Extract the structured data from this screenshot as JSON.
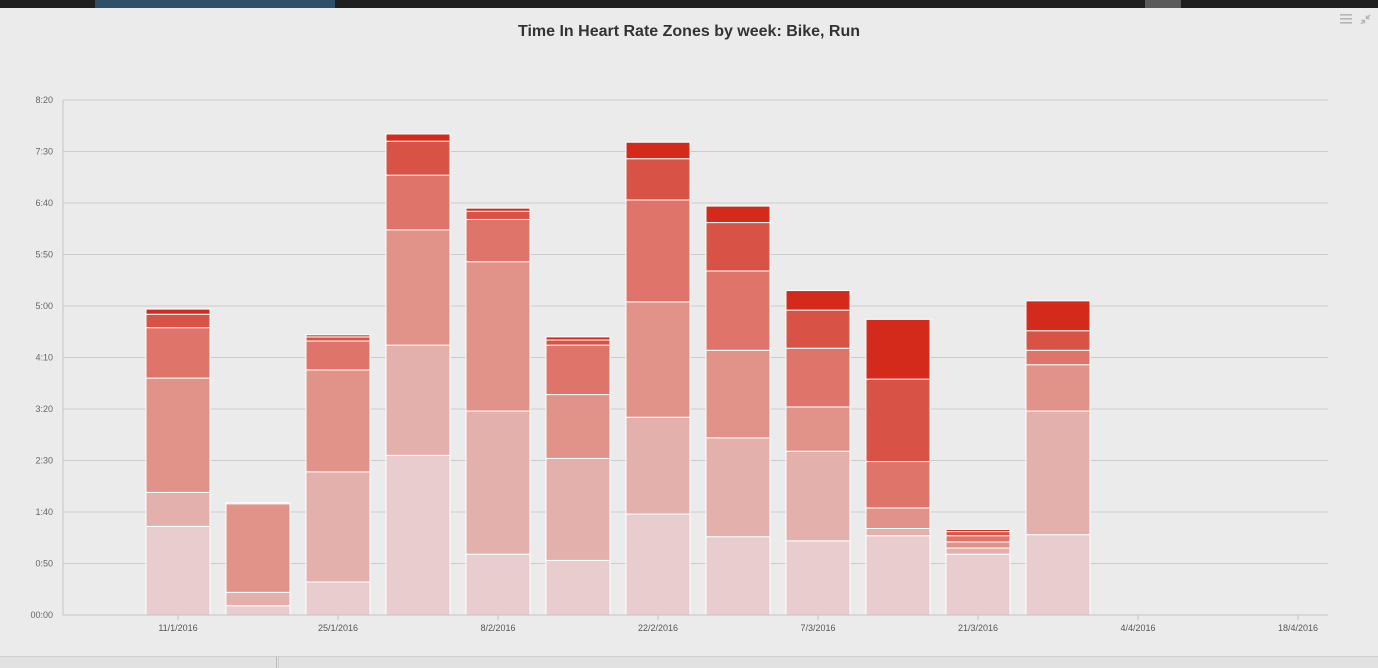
{
  "chart_data": {
    "type": "bar",
    "stacked": true,
    "title": "Time In Heart Rate Zones by week: Bike, Run",
    "y_unit": "minutes",
    "ylim": [
      0,
      500
    ],
    "yticks": [
      {
        "value": 0,
        "label": "00:00"
      },
      {
        "value": 50,
        "label": "0:50"
      },
      {
        "value": 100,
        "label": "1:40"
      },
      {
        "value": 150,
        "label": "2:30"
      },
      {
        "value": 200,
        "label": "3:20"
      },
      {
        "value": 250,
        "label": "4:10"
      },
      {
        "value": 300,
        "label": "5:00"
      },
      {
        "value": 350,
        "label": "5:50"
      },
      {
        "value": 400,
        "label": "6:40"
      },
      {
        "value": 450,
        "label": "7:30"
      },
      {
        "value": 500,
        "label": "8:20"
      }
    ],
    "x_ticks": [
      "11/1/2016",
      "25/1/2016",
      "8/2/2016",
      "22/2/2016",
      "7/3/2016",
      "21/3/2016",
      "4/4/2016",
      "18/4/2016"
    ],
    "grid": true,
    "legend": "none",
    "zone_colors": [
      "#e9cccd",
      "#e4b0ab",
      "#e29389",
      "#df746a",
      "#d85346",
      "#d42a1c"
    ],
    "weeks": [
      {
        "week": "11/1/2016",
        "zones": [
          86,
          33,
          111,
          49,
          13,
          5
        ]
      },
      {
        "week": "18/1/2016",
        "zones": [
          9,
          13,
          86,
          0,
          0,
          1
        ]
      },
      {
        "week": "25/1/2016",
        "zones": [
          32,
          107,
          99,
          28,
          4,
          2
        ]
      },
      {
        "week": "1/2/2016",
        "zones": [
          155,
          107,
          112,
          53,
          33,
          7
        ]
      },
      {
        "week": "8/2/2016",
        "zones": [
          59,
          139,
          145,
          41,
          8,
          3
        ]
      },
      {
        "week": "15/2/2016",
        "zones": [
          53,
          99,
          62,
          48,
          5,
          3
        ]
      },
      {
        "week": "22/2/2016",
        "zones": [
          98,
          94,
          112,
          99,
          40,
          16
        ]
      },
      {
        "week": "29/2/2016",
        "zones": [
          76,
          96,
          85,
          77,
          47,
          16
        ]
      },
      {
        "week": "7/3/2016",
        "zones": [
          72,
          87,
          43,
          57,
          37,
          19
        ]
      },
      {
        "week": "14/3/2016",
        "zones": [
          77,
          7,
          20,
          45,
          80,
          58
        ]
      },
      {
        "week": "21/3/2016",
        "zones": [
          59,
          6,
          6,
          6,
          4,
          2
        ]
      },
      {
        "week": "28/3/2016",
        "zones": [
          78,
          120,
          45,
          14,
          19,
          29
        ]
      }
    ]
  }
}
